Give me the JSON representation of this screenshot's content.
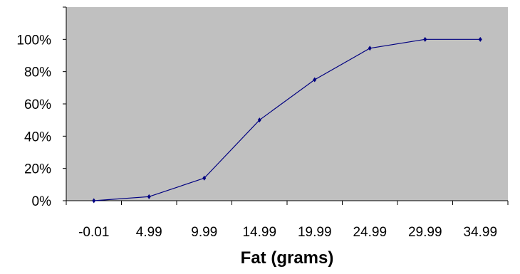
{
  "chart_data": {
    "type": "line",
    "title": "",
    "xlabel": "Fat (grams)",
    "ylabel": "",
    "categories": [
      "-0.01",
      "4.99",
      "9.99",
      "14.99",
      "19.99",
      "24.99",
      "29.99",
      "34.99"
    ],
    "y_ticks": [
      "0%",
      "20%",
      "40%",
      "60%",
      "80%",
      "100%"
    ],
    "ylim": [
      0,
      1.2
    ],
    "grid": false,
    "legend": "none",
    "series": [
      {
        "values": [
          0.0,
          0.025,
          0.14,
          0.5,
          0.75,
          0.945,
          1.0,
          1.0
        ]
      }
    ],
    "colors": {
      "plot_background": "#c0c0c0",
      "line": "#000080",
      "axis": "#000000"
    }
  }
}
